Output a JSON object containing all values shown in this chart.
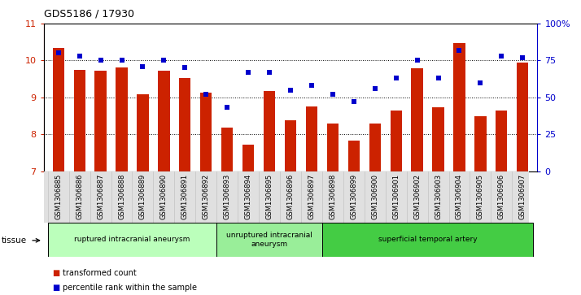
{
  "title": "GDS5186 / 17930",
  "samples": [
    "GSM1306885",
    "GSM1306886",
    "GSM1306887",
    "GSM1306888",
    "GSM1306889",
    "GSM1306890",
    "GSM1306891",
    "GSM1306892",
    "GSM1306893",
    "GSM1306894",
    "GSM1306895",
    "GSM1306896",
    "GSM1306897",
    "GSM1306898",
    "GSM1306899",
    "GSM1306900",
    "GSM1306901",
    "GSM1306902",
    "GSM1306903",
    "GSM1306904",
    "GSM1306905",
    "GSM1306906",
    "GSM1306907"
  ],
  "bar_values": [
    10.35,
    9.75,
    9.72,
    9.82,
    9.09,
    9.73,
    9.53,
    9.12,
    8.18,
    7.72,
    9.18,
    8.38,
    8.75,
    8.28,
    7.82,
    8.28,
    8.65,
    9.78,
    8.72,
    10.48,
    8.48,
    8.65,
    9.95
  ],
  "percentile_values": [
    80,
    78,
    75,
    75,
    71,
    75,
    70,
    52,
    43,
    67,
    67,
    55,
    58,
    52,
    47,
    56,
    63,
    75,
    63,
    82,
    60,
    78,
    77
  ],
  "bar_color": "#cc2200",
  "percentile_color": "#0000cc",
  "ylim_left": [
    7,
    11
  ],
  "ylim_right": [
    0,
    100
  ],
  "yticks_left": [
    7,
    8,
    9,
    10,
    11
  ],
  "yticks_right": [
    0,
    25,
    50,
    75,
    100
  ],
  "yticklabels_right": [
    "0",
    "25",
    "50",
    "75",
    "100%"
  ],
  "group_labels": [
    "ruptured intracranial aneurysm",
    "unruptured intracranial\naneurysm",
    "superficial temporal artery"
  ],
  "group_starts": [
    0,
    8,
    13
  ],
  "group_ends": [
    8,
    13,
    23
  ],
  "group_colors": [
    "#bbffbb",
    "#99ee99",
    "#44cc44"
  ],
  "tissue_label": "tissue",
  "grid_yticks": [
    8,
    9,
    10
  ],
  "plot_bg": "white"
}
